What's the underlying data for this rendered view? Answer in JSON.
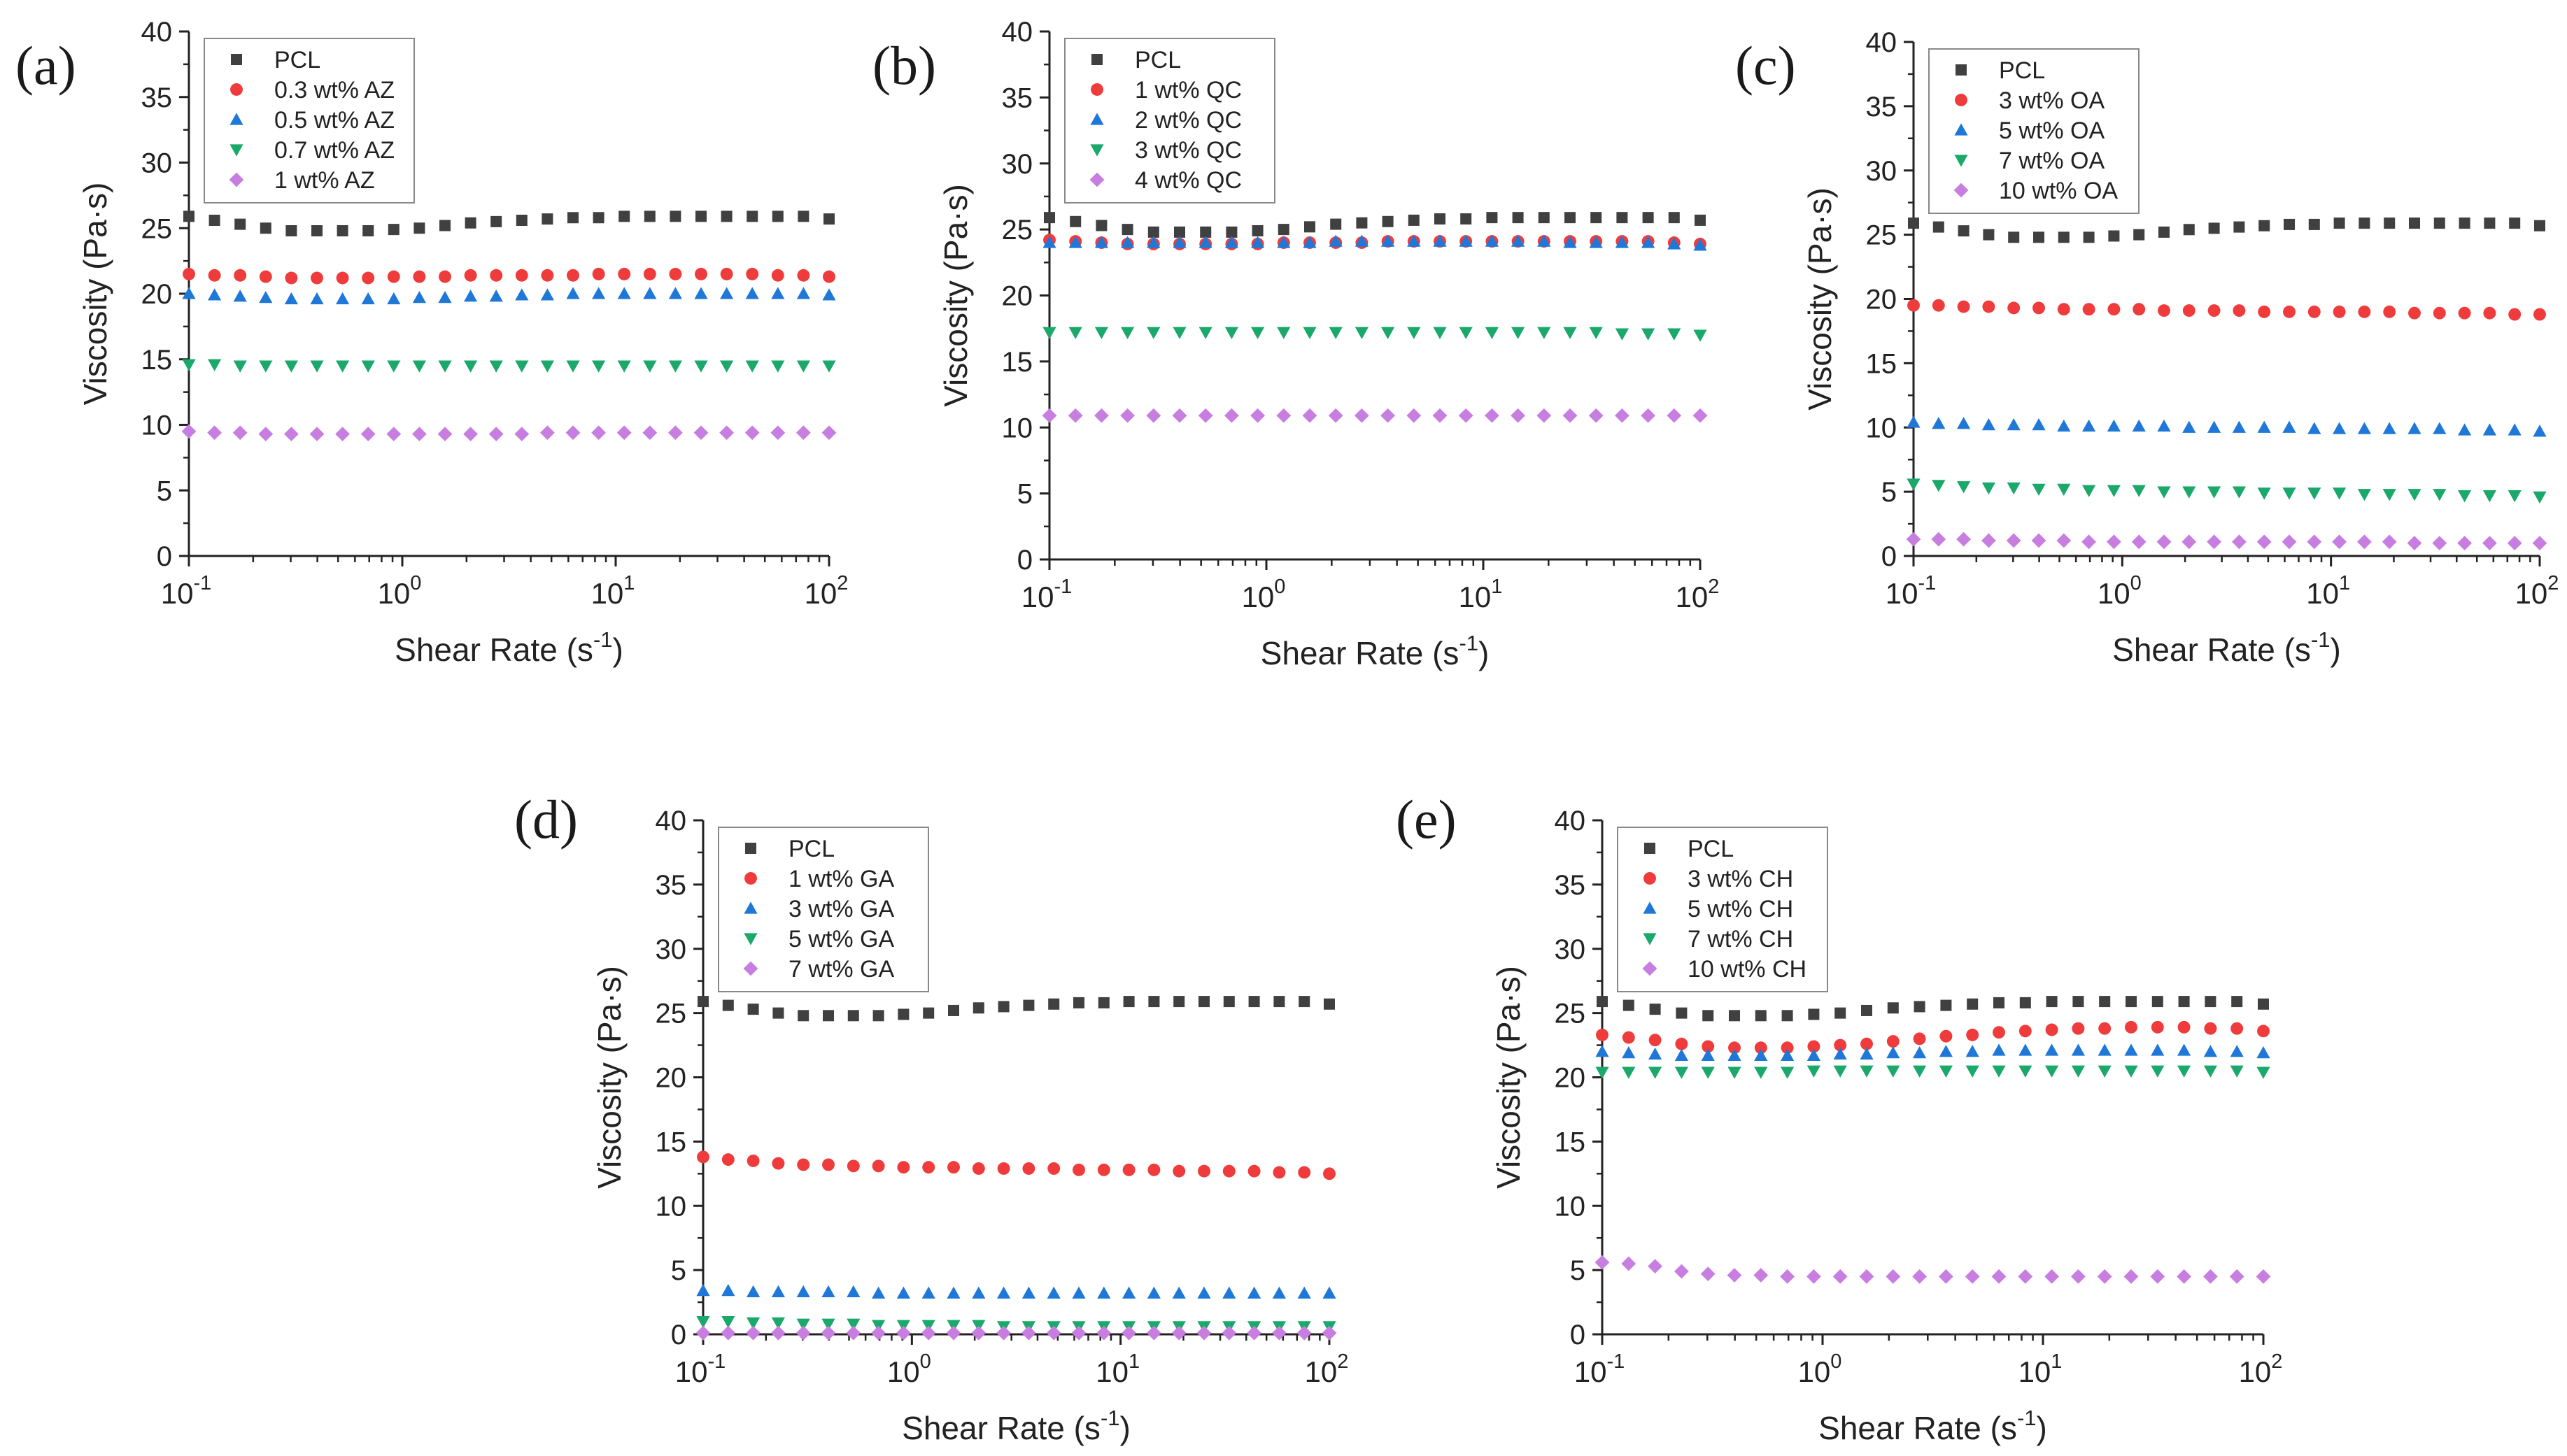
{
  "figure": {
    "description_free": true
  },
  "colors": {
    "pcl": "#404040",
    "red": "#ef3b3b",
    "blue": "#1f78d8",
    "green": "#1aa86b",
    "purple": "#c77ee0",
    "axis": "#222222"
  },
  "chart_data": [
    {
      "panel_label": "(a)",
      "type": "scatter",
      "xscale": "log",
      "xlim": [
        0.1,
        100
      ],
      "ylim": [
        0,
        40
      ],
      "yticks": [
        "0",
        "5",
        "10",
        "15",
        "20",
        "25",
        "30",
        "35",
        "40"
      ],
      "xticks": [
        {
          "base": "10",
          "exp": "-1"
        },
        {
          "base": "10",
          "exp": "0"
        },
        {
          "base": "10",
          "exp": "1"
        },
        {
          "base": "10",
          "exp": "2"
        }
      ],
      "xlabel": "Shear Rate (s",
      "xlabel_exp": "-1",
      "xlabel_end": ")",
      "ylabel": "Viscosity (Pa·s)",
      "legend_position": "top-left",
      "series": [
        {
          "name": "PCL",
          "marker": "square",
          "color": "#404040",
          "values": [
            25.9,
            25.6,
            25.3,
            25.0,
            24.8,
            24.8,
            24.8,
            24.8,
            24.9,
            25.0,
            25.2,
            25.4,
            25.5,
            25.6,
            25.7,
            25.8,
            25.8,
            25.9,
            25.9,
            25.9,
            25.9,
            25.9,
            25.9,
            25.9,
            25.9,
            25.7
          ]
        },
        {
          "name": "0.3 wt% AZ",
          "marker": "circle",
          "color": "#ef3b3b",
          "values": [
            21.5,
            21.4,
            21.4,
            21.3,
            21.2,
            21.2,
            21.2,
            21.2,
            21.3,
            21.3,
            21.3,
            21.4,
            21.4,
            21.4,
            21.4,
            21.4,
            21.5,
            21.5,
            21.5,
            21.5,
            21.5,
            21.5,
            21.5,
            21.4,
            21.4,
            21.3
          ]
        },
        {
          "name": "0.5 wt% AZ",
          "marker": "triangle-up",
          "color": "#1f78d8",
          "values": [
            20.0,
            19.9,
            19.8,
            19.7,
            19.6,
            19.6,
            19.6,
            19.6,
            19.6,
            19.7,
            19.7,
            19.8,
            19.8,
            19.9,
            19.9,
            20.0,
            20.0,
            20.0,
            20.0,
            20.0,
            20.0,
            20.0,
            20.0,
            20.0,
            20.0,
            19.9
          ]
        },
        {
          "name": "0.7 wt% AZ",
          "marker": "triangle-down",
          "color": "#1aa86b",
          "values": [
            14.6,
            14.6,
            14.5,
            14.5,
            14.5,
            14.5,
            14.5,
            14.5,
            14.5,
            14.5,
            14.5,
            14.5,
            14.5,
            14.5,
            14.5,
            14.5,
            14.5,
            14.5,
            14.5,
            14.5,
            14.5,
            14.5,
            14.5,
            14.5,
            14.5,
            14.5
          ]
        },
        {
          "name": "1 wt% AZ",
          "marker": "diamond",
          "color": "#c77ee0",
          "values": [
            9.5,
            9.4,
            9.4,
            9.3,
            9.3,
            9.3,
            9.3,
            9.3,
            9.3,
            9.3,
            9.3,
            9.3,
            9.3,
            9.3,
            9.4,
            9.4,
            9.4,
            9.4,
            9.4,
            9.4,
            9.4,
            9.4,
            9.4,
            9.4,
            9.4,
            9.4
          ]
        }
      ]
    },
    {
      "panel_label": "(b)",
      "type": "scatter",
      "xscale": "log",
      "xlim": [
        0.1,
        100
      ],
      "ylim": [
        0,
        40
      ],
      "yticks": [
        "0",
        "5",
        "10",
        "15",
        "20",
        "25",
        "30",
        "35",
        "40"
      ],
      "xticks": [
        {
          "base": "10",
          "exp": "-1"
        },
        {
          "base": "10",
          "exp": "0"
        },
        {
          "base": "10",
          "exp": "1"
        },
        {
          "base": "10",
          "exp": "2"
        }
      ],
      "xlabel": "Shear Rate (s",
      "xlabel_exp": "-1",
      "xlabel_end": ")",
      "ylabel": "Viscosity (Pa·s)",
      "legend_position": "top-left",
      "series": [
        {
          "name": "PCL",
          "marker": "square",
          "color": "#404040",
          "values": [
            25.9,
            25.6,
            25.3,
            25.0,
            24.8,
            24.8,
            24.8,
            24.8,
            24.9,
            25.0,
            25.2,
            25.4,
            25.5,
            25.6,
            25.7,
            25.8,
            25.8,
            25.9,
            25.9,
            25.9,
            25.9,
            25.9,
            25.9,
            25.9,
            25.9,
            25.7
          ]
        },
        {
          "name": "1 wt% QC",
          "marker": "circle",
          "color": "#ef3b3b",
          "values": [
            24.2,
            24.1,
            24.0,
            23.9,
            23.9,
            23.9,
            23.9,
            23.9,
            23.9,
            24.0,
            24.0,
            24.0,
            24.0,
            24.1,
            24.1,
            24.1,
            24.1,
            24.1,
            24.1,
            24.1,
            24.1,
            24.1,
            24.1,
            24.1,
            24.0,
            23.9
          ]
        },
        {
          "name": "2 wt% QC",
          "marker": "triangle-up",
          "color": "#1f78d8",
          "values": [
            24.0,
            24.0,
            24.0,
            24.0,
            24.0,
            24.0,
            24.0,
            24.0,
            24.0,
            24.0,
            24.0,
            24.1,
            24.1,
            24.1,
            24.1,
            24.1,
            24.1,
            24.1,
            24.1,
            24.1,
            24.0,
            24.0,
            24.0,
            24.0,
            23.9,
            23.8
          ]
        },
        {
          "name": "3 wt% QC",
          "marker": "triangle-down",
          "color": "#1aa86b",
          "values": [
            17.2,
            17.2,
            17.2,
            17.2,
            17.2,
            17.2,
            17.2,
            17.2,
            17.2,
            17.2,
            17.2,
            17.2,
            17.2,
            17.2,
            17.2,
            17.2,
            17.2,
            17.2,
            17.2,
            17.2,
            17.2,
            17.2,
            17.1,
            17.1,
            17.1,
            17.0
          ]
        },
        {
          "name": "4 wt% QC",
          "marker": "diamond",
          "color": "#c77ee0",
          "values": [
            10.9,
            10.9,
            10.9,
            10.9,
            10.9,
            10.9,
            10.9,
            10.9,
            10.9,
            10.9,
            10.9,
            10.9,
            10.9,
            10.9,
            10.9,
            10.9,
            10.9,
            10.9,
            10.9,
            10.9,
            10.9,
            10.9,
            10.9,
            10.9,
            10.9,
            10.9
          ]
        }
      ]
    },
    {
      "panel_label": "(c)",
      "type": "scatter",
      "xscale": "log",
      "xlim": [
        0.1,
        100
      ],
      "ylim": [
        0,
        40
      ],
      "yticks": [
        "0",
        "5",
        "10",
        "15",
        "20",
        "25",
        "30",
        "35",
        "40"
      ],
      "xticks": [
        {
          "base": "10",
          "exp": "-1"
        },
        {
          "base": "10",
          "exp": "0"
        },
        {
          "base": "10",
          "exp": "1"
        },
        {
          "base": "10",
          "exp": "2"
        }
      ],
      "xlabel": "Shear Rate (s",
      "xlabel_exp": "-1",
      "xlabel_end": ")",
      "ylabel": "Viscosity (Pa·s)",
      "legend_position": "top-left",
      "series": [
        {
          "name": "PCL",
          "marker": "square",
          "color": "#404040",
          "values": [
            25.9,
            25.6,
            25.3,
            25.0,
            24.8,
            24.8,
            24.8,
            24.8,
            24.9,
            25.0,
            25.2,
            25.4,
            25.5,
            25.6,
            25.7,
            25.8,
            25.8,
            25.9,
            25.9,
            25.9,
            25.9,
            25.9,
            25.9,
            25.9,
            25.9,
            25.7
          ]
        },
        {
          "name": "3 wt% OA",
          "marker": "circle",
          "color": "#ef3b3b",
          "values": [
            19.5,
            19.5,
            19.4,
            19.4,
            19.3,
            19.3,
            19.2,
            19.2,
            19.2,
            19.2,
            19.1,
            19.1,
            19.1,
            19.1,
            19.0,
            19.0,
            19.0,
            19.0,
            19.0,
            19.0,
            18.9,
            18.9,
            18.9,
            18.9,
            18.8,
            18.8
          ]
        },
        {
          "name": "5 wt% OA",
          "marker": "triangle-up",
          "color": "#1f78d8",
          "values": [
            10.4,
            10.3,
            10.3,
            10.2,
            10.2,
            10.2,
            10.1,
            10.1,
            10.1,
            10.1,
            10.1,
            10.0,
            10.0,
            10.0,
            10.0,
            10.0,
            9.9,
            9.9,
            9.9,
            9.9,
            9.9,
            9.9,
            9.8,
            9.8,
            9.8,
            9.7
          ]
        },
        {
          "name": "7 wt% OA",
          "marker": "triangle-down",
          "color": "#1aa86b",
          "values": [
            5.6,
            5.5,
            5.4,
            5.3,
            5.3,
            5.2,
            5.2,
            5.1,
            5.1,
            5.1,
            5.0,
            5.0,
            5.0,
            5.0,
            4.9,
            4.9,
            4.9,
            4.9,
            4.8,
            4.8,
            4.8,
            4.8,
            4.7,
            4.7,
            4.7,
            4.6
          ]
        },
        {
          "name": "10 wt% OA",
          "marker": "diamond",
          "color": "#c77ee0",
          "values": [
            1.3,
            1.3,
            1.3,
            1.2,
            1.2,
            1.2,
            1.2,
            1.1,
            1.1,
            1.1,
            1.1,
            1.1,
            1.1,
            1.1,
            1.1,
            1.1,
            1.1,
            1.1,
            1.1,
            1.1,
            1.0,
            1.0,
            1.0,
            1.0,
            1.0,
            1.0
          ]
        }
      ]
    },
    {
      "panel_label": "(d)",
      "type": "scatter",
      "xscale": "log",
      "xlim": [
        0.1,
        100
      ],
      "ylim": [
        0,
        40
      ],
      "yticks": [
        "0",
        "5",
        "10",
        "15",
        "20",
        "25",
        "30",
        "35",
        "40"
      ],
      "xticks": [
        {
          "base": "10",
          "exp": "-1"
        },
        {
          "base": "10",
          "exp": "0"
        },
        {
          "base": "10",
          "exp": "1"
        },
        {
          "base": "10",
          "exp": "2"
        }
      ],
      "xlabel": "Shear Rate (s",
      "xlabel_exp": "-1",
      "xlabel_end": ")",
      "ylabel": "Viscosity (Pa·s)",
      "legend_position": "top-left",
      "series": [
        {
          "name": "PCL",
          "marker": "square",
          "color": "#404040",
          "values": [
            25.9,
            25.6,
            25.3,
            25.0,
            24.8,
            24.8,
            24.8,
            24.8,
            24.9,
            25.0,
            25.2,
            25.4,
            25.5,
            25.6,
            25.7,
            25.8,
            25.8,
            25.9,
            25.9,
            25.9,
            25.9,
            25.9,
            25.9,
            25.9,
            25.9,
            25.7
          ]
        },
        {
          "name": "1 wt% GA",
          "marker": "circle",
          "color": "#ef3b3b",
          "values": [
            13.8,
            13.6,
            13.5,
            13.3,
            13.2,
            13.2,
            13.1,
            13.1,
            13.0,
            13.0,
            13.0,
            12.9,
            12.9,
            12.9,
            12.9,
            12.8,
            12.8,
            12.8,
            12.8,
            12.7,
            12.7,
            12.7,
            12.7,
            12.6,
            12.6,
            12.5
          ]
        },
        {
          "name": "3 wt% GA",
          "marker": "triangle-up",
          "color": "#1f78d8",
          "values": [
            3.4,
            3.4,
            3.3,
            3.3,
            3.3,
            3.3,
            3.3,
            3.2,
            3.2,
            3.2,
            3.2,
            3.2,
            3.2,
            3.2,
            3.2,
            3.2,
            3.2,
            3.2,
            3.2,
            3.2,
            3.2,
            3.2,
            3.2,
            3.2,
            3.2,
            3.2
          ]
        },
        {
          "name": "5 wt% GA",
          "marker": "triangle-down",
          "color": "#1aa86b",
          "values": [
            1.0,
            1.0,
            0.9,
            0.9,
            0.8,
            0.8,
            0.8,
            0.7,
            0.7,
            0.7,
            0.7,
            0.7,
            0.6,
            0.6,
            0.6,
            0.6,
            0.6,
            0.6,
            0.6,
            0.6,
            0.6,
            0.6,
            0.6,
            0.6,
            0.6,
            0.6
          ]
        },
        {
          "name": "7 wt% GA",
          "marker": "diamond",
          "color": "#c77ee0",
          "values": [
            0.1,
            0.1,
            0.1,
            0.1,
            0.1,
            0.1,
            0.1,
            0.1,
            0.1,
            0.1,
            0.1,
            0.1,
            0.1,
            0.1,
            0.1,
            0.1,
            0.1,
            0.1,
            0.1,
            0.1,
            0.1,
            0.1,
            0.1,
            0.1,
            0.1,
            0.1
          ]
        }
      ]
    },
    {
      "panel_label": "(e)",
      "type": "scatter",
      "xscale": "log",
      "xlim": [
        0.1,
        100
      ],
      "ylim": [
        0,
        40
      ],
      "yticks": [
        "0",
        "5",
        "10",
        "15",
        "20",
        "25",
        "30",
        "35",
        "40"
      ],
      "xticks": [
        {
          "base": "10",
          "exp": "-1"
        },
        {
          "base": "10",
          "exp": "0"
        },
        {
          "base": "10",
          "exp": "1"
        },
        {
          "base": "10",
          "exp": "2"
        }
      ],
      "xlabel": "Shear Rate (s",
      "xlabel_exp": "-1",
      "xlabel_end": ")",
      "ylabel": "Viscosity (Pa·s)",
      "legend_position": "top-left",
      "series": [
        {
          "name": "PCL",
          "marker": "square",
          "color": "#404040",
          "values": [
            25.9,
            25.6,
            25.3,
            25.0,
            24.8,
            24.8,
            24.8,
            24.8,
            24.9,
            25.0,
            25.2,
            25.4,
            25.5,
            25.6,
            25.7,
            25.8,
            25.8,
            25.9,
            25.9,
            25.9,
            25.9,
            25.9,
            25.9,
            25.9,
            25.9,
            25.7
          ]
        },
        {
          "name": "3 wt% CH",
          "marker": "circle",
          "color": "#ef3b3b",
          "values": [
            23.3,
            23.1,
            22.9,
            22.6,
            22.4,
            22.3,
            22.3,
            22.3,
            22.4,
            22.5,
            22.6,
            22.8,
            23.0,
            23.2,
            23.3,
            23.5,
            23.6,
            23.7,
            23.8,
            23.8,
            23.9,
            23.9,
            23.9,
            23.8,
            23.8,
            23.6
          ]
        },
        {
          "name": "5 wt% CH",
          "marker": "triangle-up",
          "color": "#1f78d8",
          "values": [
            22.0,
            21.9,
            21.8,
            21.7,
            21.7,
            21.7,
            21.7,
            21.7,
            21.7,
            21.8,
            21.8,
            21.9,
            21.9,
            22.0,
            22.0,
            22.1,
            22.1,
            22.1,
            22.1,
            22.1,
            22.1,
            22.1,
            22.1,
            22.0,
            22.0,
            21.9
          ]
        },
        {
          "name": "7 wt% CH",
          "marker": "triangle-down",
          "color": "#1aa86b",
          "values": [
            20.4,
            20.4,
            20.4,
            20.4,
            20.4,
            20.4,
            20.4,
            20.4,
            20.5,
            20.5,
            20.5,
            20.5,
            20.5,
            20.5,
            20.5,
            20.5,
            20.5,
            20.5,
            20.5,
            20.5,
            20.5,
            20.5,
            20.5,
            20.5,
            20.5,
            20.4
          ]
        },
        {
          "name": "10 wt% CH",
          "marker": "diamond",
          "color": "#c77ee0",
          "values": [
            5.6,
            5.5,
            5.3,
            4.9,
            4.7,
            4.6,
            4.6,
            4.5,
            4.5,
            4.5,
            4.5,
            4.5,
            4.5,
            4.5,
            4.5,
            4.5,
            4.5,
            4.5,
            4.5,
            4.5,
            4.5,
            4.5,
            4.5,
            4.5,
            4.5,
            4.5
          ]
        }
      ]
    }
  ]
}
